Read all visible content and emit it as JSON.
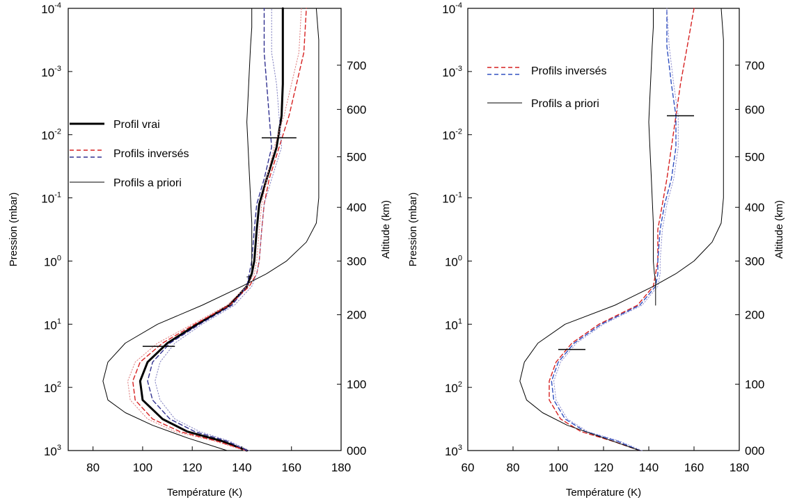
{
  "chart_data": [
    {
      "type": "line",
      "panel": "left",
      "xlabel": "Température (K)",
      "ylabel": "Pression (mbar)",
      "y2label": "Altitude (km)",
      "xlim": [
        70,
        180
      ],
      "ylim_log10_pressure": [
        -4,
        3
      ],
      "y_scale": "log-reversed",
      "x_ticks": [
        "80",
        "100",
        "120",
        "140",
        "160",
        "180"
      ],
      "y_ticks": [
        {
          "base": "10",
          "exp": "-4",
          "log": -4
        },
        {
          "base": "10",
          "exp": "-3",
          "log": -3
        },
        {
          "base": "10",
          "exp": "-2",
          "log": -2
        },
        {
          "base": "10",
          "exp": "-1",
          "log": -1
        },
        {
          "base": "10",
          "exp": "0",
          "log": 0
        },
        {
          "base": "10",
          "exp": "1",
          "log": 1
        },
        {
          "base": "10",
          "exp": "2",
          "log": 2
        },
        {
          "base": "10",
          "exp": "3",
          "log": 3
        }
      ],
      "y2_ticks": [
        {
          "label": "000",
          "log": 3.0
        },
        {
          "label": "100",
          "log": 1.95
        },
        {
          "label": "200",
          "log": 0.85
        },
        {
          "label": "300",
          "log": 0.0
        },
        {
          "label": "400",
          "log": -0.85
        },
        {
          "label": "500",
          "log": -1.65
        },
        {
          "label": "600",
          "log": -2.4
        },
        {
          "label": "700",
          "log": -3.1
        }
      ],
      "legend": [
        {
          "label": "Profil vrai",
          "style": "thick-solid",
          "colors": [
            "#000000"
          ]
        },
        {
          "label": "Profils inversés",
          "style": "dashed",
          "colors": [
            "#d62020",
            "#303090"
          ]
        },
        {
          "label": "Profils a priori",
          "style": "thin-solid",
          "colors": [
            "#000000"
          ]
        }
      ],
      "legend_position": "upper-left",
      "markers": [
        {
          "t1": 148,
          "t2": 162,
          "log_p": -1.95
        },
        {
          "t1": 100,
          "t2": 113,
          "log_p": 1.35
        }
      ],
      "series": [
        {
          "name": "Profil vrai",
          "style": "thick-solid",
          "color": "#000000",
          "t": [
            142,
            132,
            118,
            108,
            100,
            99,
            102,
            110,
            122,
            135,
            142,
            144,
            145,
            146,
            147,
            150,
            154,
            156,
            156.5,
            156.5,
            156.5
          ],
          "log_p": [
            3.0,
            2.85,
            2.7,
            2.5,
            2.2,
            1.9,
            1.6,
            1.3,
            1.0,
            0.7,
            0.4,
            0.2,
            0.0,
            -0.5,
            -0.9,
            -1.3,
            -1.8,
            -2.3,
            -2.8,
            -3.3,
            -4.0
          ]
        },
        {
          "style": "dashed",
          "color": "#d62020",
          "t": [
            142,
            130,
            115,
            104,
            97,
            96,
            99,
            108,
            121,
            135,
            143,
            146,
            147,
            148,
            149,
            151,
            155,
            159,
            162,
            165,
            166
          ],
          "log_p": [
            3.0,
            2.85,
            2.7,
            2.5,
            2.2,
            1.9,
            1.6,
            1.3,
            1.0,
            0.7,
            0.4,
            0.2,
            0.0,
            -0.5,
            -0.9,
            -1.3,
            -1.8,
            -2.3,
            -2.8,
            -3.3,
            -4.0
          ]
        },
        {
          "style": "dashed",
          "color": "#303090",
          "t": [
            142,
            134,
            121,
            111,
            104,
            102,
            104,
            111,
            123,
            136,
            142,
            143,
            144,
            145,
            146,
            149,
            152,
            151,
            150,
            149,
            149
          ],
          "log_p": [
            3.0,
            2.85,
            2.7,
            2.5,
            2.2,
            1.9,
            1.6,
            1.3,
            1.0,
            0.7,
            0.4,
            0.2,
            0.0,
            -0.5,
            -0.9,
            -1.3,
            -1.8,
            -2.3,
            -2.8,
            -3.3,
            -4.0
          ]
        },
        {
          "style": "dotted",
          "color": "#8080c0",
          "t": [
            143,
            135,
            123,
            113,
            107,
            105,
            107,
            113,
            124,
            137,
            144,
            146,
            147,
            148,
            149,
            152,
            156,
            155,
            154,
            152,
            152
          ],
          "log_p": [
            3.0,
            2.85,
            2.7,
            2.5,
            2.2,
            1.9,
            1.6,
            1.3,
            1.0,
            0.7,
            0.4,
            0.2,
            0.0,
            -0.5,
            -0.9,
            -1.3,
            -1.8,
            -2.3,
            -2.8,
            -3.3,
            -4.0
          ]
        },
        {
          "style": "dotted",
          "color": "#e08080",
          "t": [
            141,
            129,
            113,
            102,
            95,
            94,
            97,
            106,
            120,
            134,
            142,
            145,
            146,
            147,
            148,
            150,
            153,
            157,
            160,
            163,
            164
          ],
          "log_p": [
            3.0,
            2.85,
            2.7,
            2.5,
            2.2,
            1.9,
            1.6,
            1.3,
            1.0,
            0.7,
            0.4,
            0.2,
            0.0,
            -0.5,
            -0.9,
            -1.3,
            -1.8,
            -2.3,
            -2.8,
            -3.3,
            -4.0
          ]
        },
        {
          "style": "thin-solid",
          "color": "#000000",
          "t": [
            134,
            118,
            104,
            93,
            86,
            84,
            86,
            93,
            106,
            124,
            140,
            150,
            158,
            166,
            170,
            171,
            171,
            171,
            171,
            171,
            170
          ],
          "log_p": [
            3.0,
            2.8,
            2.6,
            2.4,
            2.2,
            1.9,
            1.6,
            1.3,
            1.0,
            0.7,
            0.4,
            0.2,
            0.0,
            -0.3,
            -0.6,
            -1.0,
            -1.5,
            -2.0,
            -2.8,
            -3.5,
            -4.0
          ]
        },
        {
          "style": "thin-solid",
          "color": "#000000",
          "t": [
            144,
            144,
            143.5,
            143,
            142.5,
            142,
            142.5,
            143,
            143.5,
            144,
            144,
            144,
            144,
            143,
            142,
            142,
            142,
            142,
            142,
            142,
            142
          ],
          "log_p": [
            -4.0,
            -3.7,
            -3.4,
            -3.0,
            -2.6,
            -2.2,
            -1.8,
            -1.4,
            -1.0,
            -0.6,
            -0.3,
            0.0,
            0.2,
            0.25,
            0.25,
            0.25,
            0.25,
            0.25,
            0.25,
            0.25,
            0.25
          ]
        }
      ]
    },
    {
      "type": "line",
      "panel": "right",
      "xlabel": "Température (K)",
      "ylabel": "Pression (mbar)",
      "y2label": "Altitude (km)",
      "xlim": [
        60,
        180
      ],
      "ylim_log10_pressure": [
        -4,
        3
      ],
      "y_scale": "log-reversed",
      "x_ticks": [
        "60",
        "80",
        "100",
        "120",
        "140",
        "160",
        "180"
      ],
      "y_ticks": [
        {
          "base": "10",
          "exp": "-4",
          "log": -4
        },
        {
          "base": "10",
          "exp": "-3",
          "log": -3
        },
        {
          "base": "10",
          "exp": "-2",
          "log": -2
        },
        {
          "base": "10",
          "exp": "-1",
          "log": -1
        },
        {
          "base": "10",
          "exp": "0",
          "log": 0
        },
        {
          "base": "10",
          "exp": "1",
          "log": 1
        },
        {
          "base": "10",
          "exp": "2",
          "log": 2
        },
        {
          "base": "10",
          "exp": "3",
          "log": 3
        }
      ],
      "y2_ticks": [
        {
          "label": "000",
          "log": 3.0
        },
        {
          "label": "100",
          "log": 1.95
        },
        {
          "label": "200",
          "log": 0.85
        },
        {
          "label": "300",
          "log": 0.0
        },
        {
          "label": "400",
          "log": -0.85
        },
        {
          "label": "500",
          "log": -1.65
        },
        {
          "label": "600",
          "log": -2.4
        },
        {
          "label": "700",
          "log": -3.1
        }
      ],
      "legend": [
        {
          "label": "Profils inversés",
          "style": "dashed",
          "colors": [
            "#d62020",
            "#3050c0"
          ]
        },
        {
          "label": "Profils a priori",
          "style": "thin-solid",
          "colors": [
            "#000000"
          ]
        }
      ],
      "legend_position": "upper-left",
      "markers": [
        {
          "t1": 148,
          "t2": 160,
          "log_p": -2.3
        },
        {
          "t1": 100,
          "t2": 112,
          "log_p": 1.4
        }
      ],
      "series": [
        {
          "style": "dashed",
          "color": "#d62020",
          "t": [
            136,
            124,
            110,
            101,
            96,
            96,
            99,
            106,
            118,
            135,
            142,
            143,
            144,
            144,
            146,
            148,
            150,
            152,
            154,
            157,
            160
          ],
          "log_p": [
            3.0,
            2.85,
            2.7,
            2.5,
            2.2,
            1.9,
            1.6,
            1.3,
            1.0,
            0.7,
            0.4,
            0.2,
            0.0,
            -0.5,
            -0.9,
            -1.3,
            -1.8,
            -2.3,
            -2.8,
            -3.4,
            -4.0
          ]
        },
        {
          "style": "dashed",
          "color": "#3050c0",
          "t": [
            136,
            126,
            112,
            103,
            98,
            97,
            100,
            107,
            119,
            136,
            143,
            144,
            144,
            145,
            147,
            150,
            152,
            152,
            150,
            148,
            148
          ],
          "log_p": [
            3.0,
            2.85,
            2.7,
            2.5,
            2.2,
            1.9,
            1.6,
            1.3,
            1.0,
            0.7,
            0.4,
            0.2,
            0.0,
            -0.5,
            -0.9,
            -1.3,
            -1.8,
            -2.3,
            -2.8,
            -3.4,
            -4.0
          ]
        },
        {
          "style": "dotted",
          "color": "#9090d0",
          "t": [
            137,
            127,
            113,
            104,
            99,
            98,
            101,
            108,
            120,
            137,
            144,
            145,
            145,
            146,
            148,
            151,
            153,
            153,
            151,
            149,
            148
          ],
          "log_p": [
            3.0,
            2.85,
            2.7,
            2.5,
            2.2,
            1.9,
            1.6,
            1.3,
            1.0,
            0.7,
            0.4,
            0.2,
            0.0,
            -0.5,
            -0.9,
            -1.3,
            -1.8,
            -2.3,
            -2.8,
            -3.4,
            -4.0
          ]
        },
        {
          "style": "thin-solid",
          "color": "#000000",
          "t": [
            136,
            120,
            104,
            93,
            86,
            83,
            85,
            91,
            103,
            125,
            142,
            152,
            160,
            168,
            172,
            173,
            173,
            173,
            173,
            173,
            172
          ],
          "log_p": [
            3.0,
            2.8,
            2.6,
            2.4,
            2.2,
            1.9,
            1.6,
            1.3,
            1.0,
            0.7,
            0.4,
            0.2,
            0.0,
            -0.3,
            -0.6,
            -1.0,
            -1.5,
            -2.0,
            -2.8,
            -3.5,
            -4.0
          ]
        },
        {
          "style": "thin-solid",
          "color": "#000000",
          "t": [
            142,
            142,
            141.5,
            141,
            140.5,
            140,
            140.5,
            141,
            141.5,
            142,
            142,
            142,
            142.5,
            143,
            143,
            143,
            143,
            143,
            143,
            143,
            143
          ],
          "log_p": [
            -4.0,
            -3.7,
            -3.4,
            -3.0,
            -2.6,
            -2.2,
            -1.8,
            -1.4,
            -1.0,
            -0.6,
            -0.3,
            0.0,
            0.2,
            0.3,
            0.5,
            0.7,
            0.7,
            0.7,
            0.7,
            0.7,
            0.7
          ]
        }
      ]
    }
  ]
}
